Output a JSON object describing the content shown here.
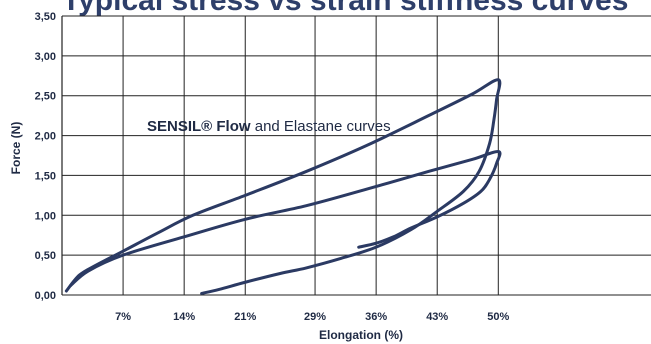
{
  "chart_data": {
    "type": "line",
    "title": "Typical stress vs strain stiffness curves",
    "xlabel": "Elongation (%)",
    "ylabel": "Force (N)",
    "xlim": [
      0,
      67.5
    ],
    "ylim": [
      0,
      3.5
    ],
    "x_ticks": [
      7,
      14,
      21,
      29,
      36,
      43,
      50
    ],
    "x_tick_labels": [
      "7%",
      "14%",
      "21%",
      "29%",
      "36%",
      "43%",
      "50%"
    ],
    "y_ticks": [
      0,
      0.5,
      1,
      1.5,
      2,
      2.5,
      3,
      3.5
    ],
    "y_tick_labels": [
      "0,00",
      "0,50",
      "1,00",
      "1,50",
      "2,00",
      "2,50",
      "3,00",
      "3,50"
    ],
    "grid": true,
    "annotation": {
      "bold": "SENSIL® Flow",
      "rest": " and Elastane curves"
    },
    "series": [
      {
        "color": "#2b3a63",
        "x": [
          0.5,
          2,
          4,
          7,
          11,
          15,
          21,
          28,
          35,
          42,
          47,
          50,
          49.8,
          49.5,
          49,
          47.8,
          46,
          43,
          40,
          36,
          32,
          28,
          25,
          21,
          18,
          16
        ],
        "y": [
          0.05,
          0.25,
          0.38,
          0.55,
          0.78,
          1.0,
          1.25,
          1.55,
          1.88,
          2.25,
          2.52,
          2.7,
          2.45,
          2.2,
          1.9,
          1.55,
          1.3,
          1.05,
          0.82,
          0.6,
          0.46,
          0.34,
          0.27,
          0.16,
          0.07,
          0.02
        ]
      },
      {
        "color": "#2b3a63",
        "x": [
          1,
          3,
          7,
          14,
          21,
          28,
          35,
          42,
          47,
          50,
          49.8,
          49,
          48,
          46,
          43,
          40,
          38,
          36,
          34
        ],
        "y": [
          0.12,
          0.3,
          0.5,
          0.73,
          0.95,
          1.12,
          1.33,
          1.55,
          1.7,
          1.8,
          1.65,
          1.45,
          1.3,
          1.15,
          0.98,
          0.84,
          0.73,
          0.65,
          0.6
        ]
      }
    ]
  }
}
